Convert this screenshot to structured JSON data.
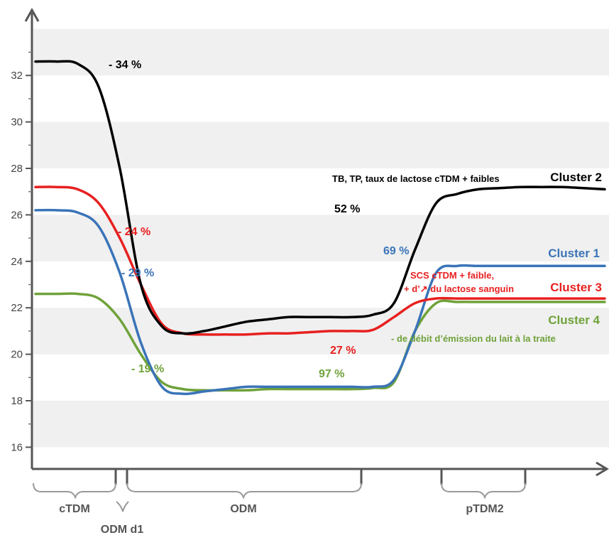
{
  "chart_data": {
    "type": "line",
    "title": "",
    "xlabel": "",
    "ylabel": "",
    "ylim": [
      14.2,
      34.8
    ],
    "yticks": [
      16,
      18,
      20,
      22,
      24,
      26,
      28,
      30,
      32
    ],
    "grid": "alternating horizontal bands",
    "periods": [
      {
        "label": "cTDM"
      },
      {
        "label": "ODM d1"
      },
      {
        "label": "ODM"
      },
      {
        "label": "pTDM2"
      }
    ],
    "series": [
      {
        "name": "Cluster 2",
        "color": "#000000",
        "values": [
          32.6,
          32.6,
          32.5,
          31.5,
          28.0,
          23.0,
          21.2,
          20.9,
          21.0,
          21.2,
          21.4,
          21.5,
          21.6,
          21.6,
          21.6,
          21.6,
          21.7,
          22.2,
          24.5,
          26.5,
          26.9,
          27.1,
          27.15,
          27.2,
          27.2,
          27.2,
          27.15,
          27.1
        ]
      },
      {
        "name": "Cluster 1",
        "color": "#3a74b8",
        "values": [
          26.2,
          26.2,
          26.1,
          25.5,
          23.5,
          20.5,
          18.6,
          18.3,
          18.4,
          18.5,
          18.6,
          18.6,
          18.6,
          18.6,
          18.6,
          18.6,
          18.6,
          18.9,
          21.0,
          23.5,
          23.8,
          23.8,
          23.8,
          23.8,
          23.8,
          23.8,
          23.8,
          23.8
        ]
      },
      {
        "name": "Cluster 3",
        "color": "#e82020",
        "values": [
          27.2,
          27.2,
          27.1,
          26.5,
          25.0,
          23.0,
          21.3,
          20.9,
          20.85,
          20.85,
          20.85,
          20.9,
          20.9,
          20.95,
          21.0,
          21.0,
          21.05,
          21.6,
          22.2,
          22.4,
          22.4,
          22.4,
          22.4,
          22.4,
          22.4,
          22.4,
          22.4,
          22.4
        ]
      },
      {
        "name": "Cluster 4",
        "color": "#6fa23a",
        "values": [
          22.6,
          22.6,
          22.6,
          22.4,
          21.5,
          20.0,
          18.8,
          18.5,
          18.45,
          18.45,
          18.45,
          18.5,
          18.5,
          18.5,
          18.5,
          18.5,
          18.55,
          18.8,
          21.0,
          22.2,
          22.25,
          22.25,
          22.25,
          22.25,
          22.25,
          22.25,
          22.25,
          22.25
        ]
      }
    ],
    "annotations": [
      {
        "text": "- 34 %",
        "color": "#000000"
      },
      {
        "text": "TB, TP, taux de lactose cTDM + faibles",
        "color": "#000000"
      },
      {
        "text": "52 %",
        "color": "#000000"
      },
      {
        "text": "- 24 %",
        "color": "#e82020"
      },
      {
        "text": "- 29 %",
        "color": "#3a74b8"
      },
      {
        "text": "69 %",
        "color": "#3a74b8"
      },
      {
        "text": "SCS cTDM + faible,",
        "color": "#e82020"
      },
      {
        "text": "+ d’↗ du lactose sanguin",
        "color": "#e82020"
      },
      {
        "text": "27 %",
        "color": "#e82020"
      },
      {
        "text": "- 19 %",
        "color": "#6fa23a"
      },
      {
        "text": "97 %",
        "color": "#6fa23a"
      },
      {
        "text": "- de débit d’émission du lait à la traite",
        "color": "#6fa23a"
      }
    ]
  }
}
